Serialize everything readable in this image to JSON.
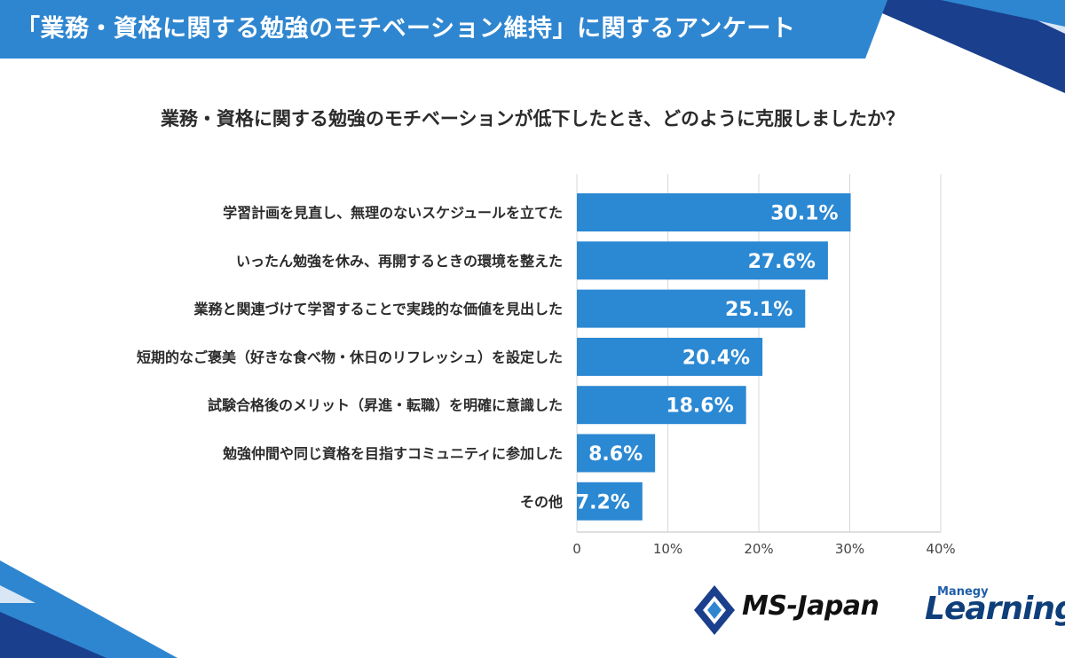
{
  "header": {
    "title": "「業務・資格に関する勉強のモチベーション維持」に関するアンケート",
    "banner_color": "#2f86d0"
  },
  "question": "業務・資格に関する勉強のモチベーションが低下したとき、どのように克服しましたか？",
  "chart_data": {
    "type": "bar",
    "orientation": "horizontal",
    "categories": [
      "学習計画を見直し、無理のないスケジュールを立てた",
      "いったん勉強を休み、再開するときの環境を整えた",
      "業務と関連づけて学習することで実践的な価値を見出した",
      "短期的なご褒美（好きな食べ物・休日のリフレッシュ）を設定した",
      "試験合格後のメリット（昇進・転職）を明確に意識した",
      "勉強仲間や同じ資格を目指すコミュニティに参加した",
      "その他"
    ],
    "values": [
      30.1,
      27.6,
      25.1,
      20.4,
      18.6,
      8.6,
      7.2
    ],
    "value_labels": [
      "30.1%",
      "27.6%",
      "25.1%",
      "20.4%",
      "18.6%",
      "8.6%",
      "7.2%"
    ],
    "xlim": [
      0,
      40
    ],
    "xticks": [
      0,
      10,
      20,
      30,
      40
    ],
    "xtick_labels": [
      "0",
      "10%",
      "20%",
      "30%",
      "40%"
    ],
    "grid": true,
    "bar_color": "#2b88d3",
    "label_color": "#ffffff"
  },
  "logos": {
    "ms_japan": "MS-Japan",
    "learning_small": "Manegy",
    "learning_big": "Learning"
  }
}
